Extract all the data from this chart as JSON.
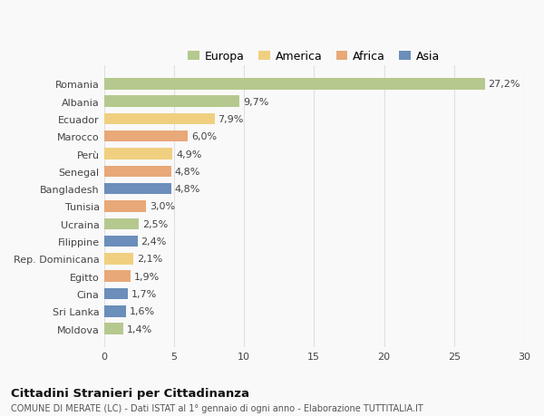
{
  "countries": [
    "Romania",
    "Albania",
    "Ecuador",
    "Marocco",
    "Perù",
    "Senegal",
    "Bangladesh",
    "Tunisia",
    "Ucraina",
    "Filippine",
    "Rep. Dominicana",
    "Egitto",
    "Cina",
    "Sri Lanka",
    "Moldova"
  ],
  "values": [
    27.2,
    9.7,
    7.9,
    6.0,
    4.9,
    4.8,
    4.8,
    3.0,
    2.5,
    2.4,
    2.1,
    1.9,
    1.7,
    1.6,
    1.4
  ],
  "labels": [
    "27,2%",
    "9,7%",
    "7,9%",
    "6,0%",
    "4,9%",
    "4,8%",
    "4,8%",
    "3,0%",
    "2,5%",
    "2,4%",
    "2,1%",
    "1,9%",
    "1,7%",
    "1,6%",
    "1,4%"
  ],
  "continents": [
    "Europa",
    "Europa",
    "America",
    "Africa",
    "America",
    "Africa",
    "Asia",
    "Africa",
    "Europa",
    "Asia",
    "America",
    "Africa",
    "Asia",
    "Asia",
    "Europa"
  ],
  "colors": {
    "Europa": "#b5c98e",
    "America": "#f0d080",
    "Africa": "#e8a878",
    "Asia": "#6b8eba"
  },
  "legend_labels": [
    "Europa",
    "America",
    "Africa",
    "Asia"
  ],
  "legend_colors": [
    "#b5c98e",
    "#f0d080",
    "#e8a878",
    "#6b8eba"
  ],
  "title": "Cittadini Stranieri per Cittadinanza",
  "subtitle": "COMUNE DI MERATE (LC) - Dati ISTAT al 1° gennaio di ogni anno - Elaborazione TUTTITALIA.IT",
  "xlim": [
    0,
    30
  ],
  "xticks": [
    0,
    5,
    10,
    15,
    20,
    25,
    30
  ],
  "background_color": "#f9f9f9",
  "grid_color": "#e0e0e0",
  "bar_height": 0.65,
  "bar_alpha": 1.0,
  "label_fontsize": 8,
  "ytick_fontsize": 8,
  "xtick_fontsize": 8
}
